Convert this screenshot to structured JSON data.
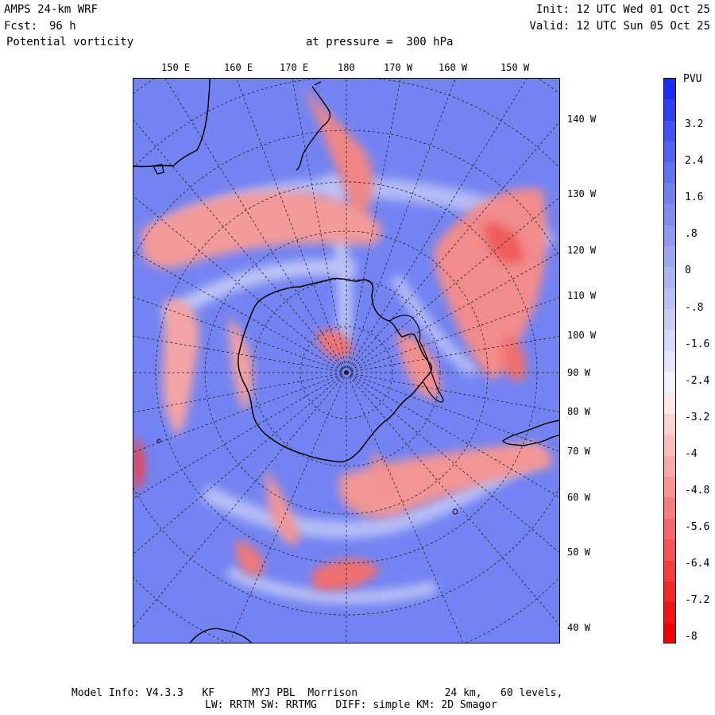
{
  "header": {
    "model": "AMPS 24-km WRF",
    "forecast_label": "Fcst:",
    "forecast_value": "96 h",
    "field": "Potential vorticity",
    "pressure": "at pressure =  300 hPa",
    "init": "Init: 12 UTC Wed 01 Oct 25",
    "valid": "Valid: 12 UTC Sun 05 Oct 25"
  },
  "map": {
    "top_longitude_labels": [
      "150 E",
      "160 E",
      "170 E",
      "180",
      "170 W",
      "160 W",
      "150 W"
    ],
    "right_longitude_labels": [
      "140 W",
      "130 W",
      "120 W",
      "110 W",
      "100 W",
      "90 W",
      "80 W",
      "70 W",
      "60 W",
      "50 W",
      "40 W"
    ],
    "land_color": "#000000",
    "background_color": "#7383f2"
  },
  "colorbar": {
    "units": "PVU",
    "labels": [
      "3.2",
      "2.4",
      "1.6",
      ".8",
      "0",
      "-.8",
      "-1.6",
      "-2.4",
      "-3.2",
      "-4",
      "-4.8",
      "-5.6",
      "-6.4",
      "-7.2",
      "-8"
    ],
    "colors": [
      "#1a2cf2",
      "#2e3ff0",
      "#4152f0",
      "#5363f0",
      "#6272ef",
      "#7180ef",
      "#808def",
      "#8e99ef",
      "#9da7f1",
      "#abb3f3",
      "#b9c0f5",
      "#c7ccf7",
      "#d5d9f9",
      "#e2e5fb",
      "#f1f2fd",
      "#fde8e8",
      "#fcd3d3",
      "#fbbdbd",
      "#f9a8a8",
      "#f89393",
      "#f67d7d",
      "#f46868",
      "#f35252",
      "#f13c3c",
      "#ef2727",
      "#ee1212",
      "#ec0000"
    ]
  },
  "footer": {
    "line1": "Model Info: V4.3.3   KF      MYJ PBL  Morrison              24 km,   60 levels,",
    "line2": "LW: RRTM SW: RRTMG   DIFF: simple KM: 2D Smagor"
  }
}
